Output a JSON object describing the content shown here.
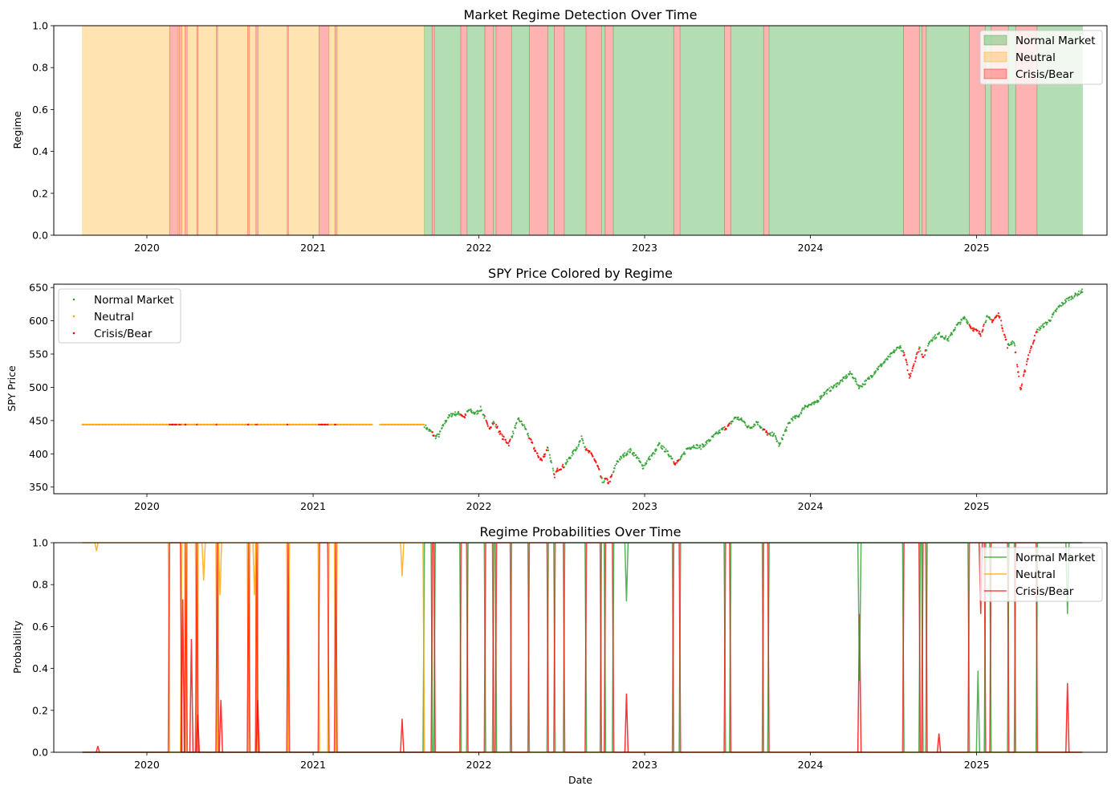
{
  "colors": {
    "normal": "#2ca02c",
    "neutral": "#ffa500",
    "crisis": "#ff0000"
  },
  "x_axis": {
    "ticks": [
      "2020",
      "2021",
      "2022",
      "2023",
      "2024",
      "2025"
    ],
    "xlabel": "Date"
  },
  "legend_labels": [
    "Normal Market",
    "Neutral",
    "Crisis/Bear"
  ],
  "chart_data": [
    {
      "type": "area",
      "title": "Market Regime Detection Over Time",
      "xlabel": "",
      "ylabel": "Regime",
      "x_range": [
        "2019-08-12",
        "2025-08-22"
      ],
      "ylim": [
        0,
        1
      ],
      "y_ticks": [
        "0.0",
        "0.2",
        "0.4",
        "0.6",
        "0.8",
        "1.0"
      ],
      "legend": "upper right",
      "segments": [
        {
          "start": "2019-08-12",
          "end": "2020-02-20",
          "regime": "Neutral"
        },
        {
          "start": "2020-02-20",
          "end": "2020-03-10",
          "regime": "Crisis/Bear"
        },
        {
          "start": "2020-03-10",
          "end": "2020-03-12",
          "regime": "Neutral"
        },
        {
          "start": "2020-03-12",
          "end": "2020-03-18",
          "regime": "Crisis/Bear"
        },
        {
          "start": "2020-03-18",
          "end": "2020-03-25",
          "regime": "Neutral"
        },
        {
          "start": "2020-03-25",
          "end": "2020-03-30",
          "regime": "Crisis/Bear"
        },
        {
          "start": "2020-03-30",
          "end": "2020-04-20",
          "regime": "Neutral"
        },
        {
          "start": "2020-04-20",
          "end": "2020-04-23",
          "regime": "Crisis/Bear"
        },
        {
          "start": "2020-04-23",
          "end": "2020-06-02",
          "regime": "Neutral"
        },
        {
          "start": "2020-06-02",
          "end": "2020-06-05",
          "regime": "Crisis/Bear"
        },
        {
          "start": "2020-06-05",
          "end": "2020-08-10",
          "regime": "Neutral"
        },
        {
          "start": "2020-08-10",
          "end": "2020-08-14",
          "regime": "Crisis/Bear"
        },
        {
          "start": "2020-08-14",
          "end": "2020-08-28",
          "regime": "Neutral"
        },
        {
          "start": "2020-08-28",
          "end": "2020-09-02",
          "regime": "Crisis/Bear"
        },
        {
          "start": "2020-09-02",
          "end": "2020-11-05",
          "regime": "Neutral"
        },
        {
          "start": "2020-11-05",
          "end": "2020-11-08",
          "regime": "Crisis/Bear"
        },
        {
          "start": "2020-11-08",
          "end": "2021-01-14",
          "regime": "Neutral"
        },
        {
          "start": "2021-01-14",
          "end": "2021-02-05",
          "regime": "Crisis/Bear"
        },
        {
          "start": "2021-02-05",
          "end": "2021-02-18",
          "regime": "Neutral"
        },
        {
          "start": "2021-02-18",
          "end": "2021-02-23",
          "regime": "Crisis/Bear"
        },
        {
          "start": "2021-02-23",
          "end": "2021-09-03",
          "regime": "Neutral"
        },
        {
          "start": "2021-09-03",
          "end": "2021-09-20",
          "regime": "Normal Market"
        },
        {
          "start": "2021-09-20",
          "end": "2021-09-25",
          "regime": "Crisis/Bear"
        },
        {
          "start": "2021-09-25",
          "end": "2021-11-22",
          "regime": "Normal Market"
        },
        {
          "start": "2021-11-22",
          "end": "2021-12-06",
          "regime": "Crisis/Bear"
        },
        {
          "start": "2021-12-06",
          "end": "2022-01-14",
          "regime": "Normal Market"
        },
        {
          "start": "2022-01-14",
          "end": "2022-02-02",
          "regime": "Crisis/Bear"
        },
        {
          "start": "2022-02-02",
          "end": "2022-02-08",
          "regime": "Normal Market"
        },
        {
          "start": "2022-02-08",
          "end": "2022-03-14",
          "regime": "Crisis/Bear"
        },
        {
          "start": "2022-03-14",
          "end": "2022-04-22",
          "regime": "Normal Market"
        },
        {
          "start": "2022-04-22",
          "end": "2022-06-02",
          "regime": "Crisis/Bear"
        },
        {
          "start": "2022-06-02",
          "end": "2022-06-16",
          "regime": "Normal Market"
        },
        {
          "start": "2022-06-16",
          "end": "2022-07-08",
          "regime": "Crisis/Bear"
        },
        {
          "start": "2022-07-08",
          "end": "2022-08-25",
          "regime": "Normal Market"
        },
        {
          "start": "2022-08-25",
          "end": "2022-09-28",
          "regime": "Crisis/Bear"
        },
        {
          "start": "2022-09-28",
          "end": "2022-10-06",
          "regime": "Normal Market"
        },
        {
          "start": "2022-10-06",
          "end": "2022-10-24",
          "regime": "Crisis/Bear"
        },
        {
          "start": "2022-10-24",
          "end": "2023-03-06",
          "regime": "Normal Market"
        },
        {
          "start": "2023-03-06",
          "end": "2023-03-20",
          "regime": "Crisis/Bear"
        },
        {
          "start": "2023-03-20",
          "end": "2023-06-26",
          "regime": "Normal Market"
        },
        {
          "start": "2023-06-26",
          "end": "2023-07-10",
          "regime": "Crisis/Bear"
        },
        {
          "start": "2023-07-10",
          "end": "2023-09-20",
          "regime": "Normal Market"
        },
        {
          "start": "2023-09-20",
          "end": "2023-10-02",
          "regime": "Crisis/Bear"
        },
        {
          "start": "2023-10-02",
          "end": "2024-07-24",
          "regime": "Normal Market"
        },
        {
          "start": "2024-07-24",
          "end": "2024-08-28",
          "regime": "Crisis/Bear"
        },
        {
          "start": "2024-08-28",
          "end": "2024-09-03",
          "regime": "Normal Market"
        },
        {
          "start": "2024-09-03",
          "end": "2024-09-12",
          "regime": "Crisis/Bear"
        },
        {
          "start": "2024-09-12",
          "end": "2024-12-16",
          "regime": "Normal Market"
        },
        {
          "start": "2024-12-16",
          "end": "2025-01-20",
          "regime": "Crisis/Bear"
        },
        {
          "start": "2025-01-20",
          "end": "2025-02-02",
          "regime": "Normal Market"
        },
        {
          "start": "2025-02-02",
          "end": "2025-03-12",
          "regime": "Crisis/Bear"
        },
        {
          "start": "2025-03-12",
          "end": "2025-03-28",
          "regime": "Normal Market"
        },
        {
          "start": "2025-03-28",
          "end": "2025-05-14",
          "regime": "Crisis/Bear"
        },
        {
          "start": "2025-05-14",
          "end": "2025-08-22",
          "regime": "Normal Market"
        }
      ]
    },
    {
      "type": "scatter",
      "title": "SPY Price Colored by Regime",
      "xlabel": "",
      "ylabel": "SPY Price",
      "ylim": [
        340,
        655
      ],
      "y_ticks": [
        350,
        400,
        450,
        500,
        550,
        600,
        650
      ],
      "legend": "upper left",
      "flat_price": 444,
      "flat_gap": [
        "2021-05-12",
        "2021-05-27"
      ],
      "series": [
        {
          "name": "Normal Market",
          "regime": "Normal Market"
        },
        {
          "name": "Neutral",
          "regime": "Neutral"
        },
        {
          "name": "Crisis/Bear",
          "regime": "Crisis/Bear"
        }
      ],
      "price_path": [
        [
          "2021-09-03",
          443
        ],
        [
          "2021-09-10",
          437
        ],
        [
          "2021-09-20",
          432
        ],
        [
          "2021-09-25",
          425
        ],
        [
          "2021-10-05",
          428
        ],
        [
          "2021-10-15",
          443
        ],
        [
          "2021-10-25",
          455
        ],
        [
          "2021-11-05",
          460
        ],
        [
          "2021-11-20",
          461
        ],
        [
          "2021-11-30",
          455
        ],
        [
          "2021-12-10",
          466
        ],
        [
          "2021-12-25",
          460
        ],
        [
          "2022-01-05",
          468
        ],
        [
          "2022-01-12",
          458
        ],
        [
          "2022-01-22",
          438
        ],
        [
          "2022-02-02",
          447
        ],
        [
          "2022-02-10",
          440
        ],
        [
          "2022-02-22",
          425
        ],
        [
          "2022-03-08",
          415
        ],
        [
          "2022-03-22",
          440
        ],
        [
          "2022-03-30",
          452
        ],
        [
          "2022-04-12",
          440
        ],
        [
          "2022-04-26",
          418
        ],
        [
          "2022-05-10",
          398
        ],
        [
          "2022-05-20",
          390
        ],
        [
          "2022-06-02",
          410
        ],
        [
          "2022-06-16",
          366
        ],
        [
          "2022-06-24",
          377
        ],
        [
          "2022-07-08",
          382
        ],
        [
          "2022-07-22",
          396
        ],
        [
          "2022-08-05",
          410
        ],
        [
          "2022-08-16",
          425
        ],
        [
          "2022-08-26",
          405
        ],
        [
          "2022-09-08",
          398
        ],
        [
          "2022-09-20",
          380
        ],
        [
          "2022-09-30",
          358
        ],
        [
          "2022-10-08",
          362
        ],
        [
          "2022-10-14",
          356
        ],
        [
          "2022-10-24",
          372
        ],
        [
          "2022-11-01",
          388
        ],
        [
          "2022-11-10",
          394
        ],
        [
          "2022-11-20",
          400
        ],
        [
          "2022-12-01",
          405
        ],
        [
          "2022-12-14",
          396
        ],
        [
          "2022-12-28",
          380
        ],
        [
          "2023-01-10",
          392
        ],
        [
          "2023-01-25",
          404
        ],
        [
          "2023-02-02",
          414
        ],
        [
          "2023-02-16",
          405
        ],
        [
          "2023-03-01",
          395
        ],
        [
          "2023-03-10",
          385
        ],
        [
          "2023-03-22",
          393
        ],
        [
          "2023-04-05",
          408
        ],
        [
          "2023-04-20",
          412
        ],
        [
          "2023-05-05",
          410
        ],
        [
          "2023-05-20",
          418
        ],
        [
          "2023-06-05",
          428
        ],
        [
          "2023-06-20",
          436
        ],
        [
          "2023-07-05",
          442
        ],
        [
          "2023-07-20",
          455
        ],
        [
          "2023-08-05",
          450
        ],
        [
          "2023-08-20",
          438
        ],
        [
          "2023-09-05",
          448
        ],
        [
          "2023-09-20",
          436
        ],
        [
          "2023-10-02",
          428
        ],
        [
          "2023-10-12",
          430
        ],
        [
          "2023-10-25",
          412
        ],
        [
          "2023-11-05",
          432
        ],
        [
          "2023-11-20",
          452
        ],
        [
          "2023-12-05",
          456
        ],
        [
          "2023-12-20",
          472
        ],
        [
          "2024-01-10",
          475
        ],
        [
          "2024-01-30",
          490
        ],
        [
          "2024-02-20",
          500
        ],
        [
          "2024-03-10",
          510
        ],
        [
          "2024-03-30",
          522
        ],
        [
          "2024-04-18",
          500
        ],
        [
          "2024-05-05",
          510
        ],
        [
          "2024-05-25",
          526
        ],
        [
          "2024-06-15",
          540
        ],
        [
          "2024-07-05",
          555
        ],
        [
          "2024-07-16",
          562
        ],
        [
          "2024-07-28",
          545
        ],
        [
          "2024-08-06",
          515
        ],
        [
          "2024-08-18",
          540
        ],
        [
          "2024-08-28",
          560
        ],
        [
          "2024-09-06",
          545
        ],
        [
          "2024-09-20",
          570
        ],
        [
          "2024-10-10",
          580
        ],
        [
          "2024-10-31",
          572
        ],
        [
          "2024-11-15",
          590
        ],
        [
          "2024-12-06",
          605
        ],
        [
          "2024-12-20",
          590
        ],
        [
          "2025-01-10",
          580
        ],
        [
          "2025-01-23",
          605
        ],
        [
          "2025-02-05",
          600
        ],
        [
          "2025-02-19",
          610
        ],
        [
          "2025-03-10",
          562
        ],
        [
          "2025-03-24",
          570
        ],
        [
          "2025-04-08",
          496
        ],
        [
          "2025-04-25",
          548
        ],
        [
          "2025-05-14",
          585
        ],
        [
          "2025-06-10",
          600
        ],
        [
          "2025-06-30",
          620
        ],
        [
          "2025-07-20",
          632
        ],
        [
          "2025-08-10",
          640
        ],
        [
          "2025-08-22",
          645
        ]
      ]
    },
    {
      "type": "line",
      "title": "Regime Probabilities Over Time",
      "xlabel": "Date",
      "ylabel": "Probability",
      "ylim": [
        0,
        1
      ],
      "y_ticks": [
        "0.0",
        "0.2",
        "0.4",
        "0.6",
        "0.8",
        "1.0"
      ],
      "legend": "upper right",
      "series": [
        {
          "name": "Normal Market",
          "regime": "Normal Market"
        },
        {
          "name": "Neutral",
          "regime": "Neutral"
        },
        {
          "name": "Crisis/Bear",
          "regime": "Crisis/Bear"
        }
      ],
      "spikes": [
        {
          "date": "2019-09-15",
          "series": "Crisis/Bear",
          "value": 0.03
        },
        {
          "date": "2019-09-12",
          "series": "Neutral",
          "value": 0.96,
          "dip": true
        },
        {
          "date": "2020-03-20",
          "series": "Crisis/Bear",
          "value": 0.73
        },
        {
          "date": "2020-04-08",
          "series": "Crisis/Bear",
          "value": 0.54
        },
        {
          "date": "2020-04-22",
          "series": "Crisis/Bear",
          "value": 0.18
        },
        {
          "date": "2020-05-05",
          "series": "Neutral",
          "value": 0.82,
          "dip": true
        },
        {
          "date": "2020-06-10",
          "series": "Neutral",
          "value": 0.75,
          "dip": true
        },
        {
          "date": "2020-06-12",
          "series": "Crisis/Bear",
          "value": 0.25
        },
        {
          "date": "2020-08-25",
          "series": "Neutral",
          "value": 0.75,
          "dip": true
        },
        {
          "date": "2020-09-01",
          "series": "Crisis/Bear",
          "value": 0.25
        },
        {
          "date": "2021-07-16",
          "series": "Crisis/Bear",
          "value": 0.16
        },
        {
          "date": "2021-07-16",
          "series": "Neutral",
          "value": 0.84,
          "dip": true
        },
        {
          "date": "2022-11-22",
          "series": "Crisis/Bear",
          "value": 0.28
        },
        {
          "date": "2022-11-22",
          "series": "Normal Market",
          "value": 0.72,
          "dip": true
        },
        {
          "date": "2024-04-18",
          "series": "Crisis/Bear",
          "value": 0.66
        },
        {
          "date": "2024-04-18",
          "series": "Normal Market",
          "value": 0.34,
          "dip": true
        },
        {
          "date": "2024-10-10",
          "series": "Crisis/Bear",
          "value": 0.09
        },
        {
          "date": "2025-01-04",
          "series": "Normal Market",
          "value": 0.39
        },
        {
          "date": "2025-01-10",
          "series": "Crisis/Bear",
          "value": 0.66,
          "dip": true
        },
        {
          "date": "2025-07-20",
          "series": "Crisis/Bear",
          "value": 0.33
        },
        {
          "date": "2025-07-20",
          "series": "Normal Market",
          "value": 0.66,
          "dip": true
        }
      ]
    }
  ]
}
